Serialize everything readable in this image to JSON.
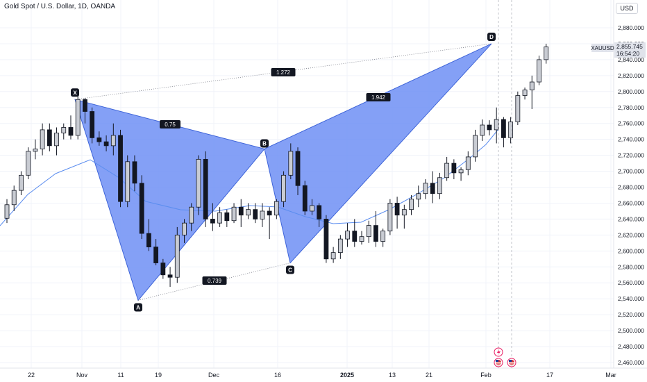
{
  "header": {
    "title": "Gold Spot / U.S. Dollar, 1D, OANDA",
    "currency_button": "USD"
  },
  "price_badge": {
    "symbol": "XAUUSD",
    "price": "2,855.745",
    "countdown": "16:54:20"
  },
  "colors": {
    "pattern_fill": "#6f8ff5",
    "pattern_stroke": "#3e64d8",
    "moving_average": "#5b8def",
    "candle_body_down": "#131722",
    "candle_body_up": "#c9ccd3"
  },
  "chart_data": {
    "type": "candlestick",
    "y_axis": {
      "range": [
        2450,
        2885
      ],
      "ticks": [
        "2,880.000",
        "2,860.000",
        "2,840.000",
        "2,820.000",
        "2,800.000",
        "2,780.000",
        "2,760.000",
        "2,740.000",
        "2,720.000",
        "2,700.000",
        "2,680.000",
        "2,660.000",
        "2,640.000",
        "2,620.000",
        "2,600.000",
        "2,580.000",
        "2,560.000",
        "2,540.000",
        "2,520.000",
        "2,500.000",
        "2,480.000",
        "2,460.000"
      ]
    },
    "x_axis": {
      "labels": [
        "22",
        "Nov",
        "11",
        "19",
        "Dec",
        "16",
        "2025",
        "13",
        "21",
        "Feb",
        "17",
        "Mar"
      ]
    },
    "candles": [
      [
        2641,
        2665,
        2635,
        2658
      ],
      [
        2658,
        2682,
        2650,
        2676
      ],
      [
        2676,
        2700,
        2670,
        2695
      ],
      [
        2695,
        2730,
        2690,
        2725
      ],
      [
        2725,
        2740,
        2715,
        2728
      ],
      [
        2728,
        2760,
        2720,
        2752
      ],
      [
        2752,
        2760,
        2725,
        2732
      ],
      [
        2732,
        2755,
        2720,
        2748
      ],
      [
        2748,
        2760,
        2740,
        2755
      ],
      [
        2755,
        2770,
        2740,
        2745
      ],
      [
        2745,
        2795,
        2740,
        2790
      ],
      [
        2790,
        2792,
        2760,
        2775
      ],
      [
        2775,
        2780,
        2735,
        2742
      ],
      [
        2742,
        2750,
        2732,
        2737
      ],
      [
        2737,
        2745,
        2725,
        2732
      ],
      [
        2732,
        2760,
        2720,
        2745
      ],
      [
        2745,
        2752,
        2655,
        2662
      ],
      [
        2662,
        2720,
        2655,
        2712
      ],
      [
        2712,
        2720,
        2675,
        2685
      ],
      [
        2685,
        2695,
        2615,
        2622
      ],
      [
        2622,
        2640,
        2600,
        2605
      ],
      [
        2605,
        2615,
        2582,
        2585
      ],
      [
        2585,
        2590,
        2565,
        2570
      ],
      [
        2570,
        2580,
        2555,
        2567
      ],
      [
        2567,
        2630,
        2560,
        2620
      ],
      [
        2620,
        2640,
        2610,
        2635
      ],
      [
        2635,
        2660,
        2625,
        2655
      ],
      [
        2655,
        2720,
        2645,
        2715
      ],
      [
        2715,
        2725,
        2630,
        2640
      ],
      [
        2640,
        2660,
        2625,
        2635
      ],
      [
        2635,
        2655,
        2630,
        2648
      ],
      [
        2648,
        2652,
        2630,
        2638
      ],
      [
        2638,
        2660,
        2635,
        2655
      ],
      [
        2655,
        2665,
        2630,
        2645
      ],
      [
        2645,
        2660,
        2640,
        2652
      ],
      [
        2652,
        2660,
        2635,
        2640
      ],
      [
        2640,
        2660,
        2630,
        2650
      ],
      [
        2650,
        2655,
        2615,
        2645
      ],
      [
        2645,
        2665,
        2640,
        2662
      ],
      [
        2662,
        2700,
        2655,
        2695
      ],
      [
        2695,
        2735,
        2690,
        2725
      ],
      [
        2725,
        2730,
        2670,
        2682
      ],
      [
        2682,
        2688,
        2645,
        2650
      ],
      [
        2650,
        2665,
        2645,
        2657
      ],
      [
        2657,
        2660,
        2630,
        2640
      ],
      [
        2640,
        2645,
        2585,
        2590
      ],
      [
        2590,
        2605,
        2585,
        2598
      ],
      [
        2598,
        2620,
        2590,
        2615
      ],
      [
        2615,
        2635,
        2605,
        2625
      ],
      [
        2625,
        2640,
        2605,
        2612
      ],
      [
        2612,
        2625,
        2608,
        2618
      ],
      [
        2618,
        2638,
        2610,
        2632
      ],
      [
        2632,
        2650,
        2605,
        2612
      ],
      [
        2612,
        2628,
        2605,
        2625
      ],
      [
        2625,
        2665,
        2620,
        2660
      ],
      [
        2660,
        2668,
        2628,
        2645
      ],
      [
        2645,
        2658,
        2628,
        2652
      ],
      [
        2652,
        2670,
        2645,
        2665
      ],
      [
        2665,
        2682,
        2655,
        2672
      ],
      [
        2672,
        2690,
        2665,
        2685
      ],
      [
        2685,
        2700,
        2660,
        2672
      ],
      [
        2672,
        2698,
        2665,
        2692
      ],
      [
        2692,
        2718,
        2688,
        2710
      ],
      [
        2710,
        2715,
        2690,
        2698
      ],
      [
        2698,
        2705,
        2688,
        2702
      ],
      [
        2702,
        2725,
        2695,
        2718
      ],
      [
        2718,
        2752,
        2712,
        2745
      ],
      [
        2745,
        2765,
        2738,
        2758
      ],
      [
        2758,
        2764,
        2745,
        2752
      ],
      [
        2752,
        2780,
        2735,
        2765
      ],
      [
        2765,
        2768,
        2730,
        2742
      ],
      [
        2742,
        2768,
        2735,
        2762
      ],
      [
        2762,
        2800,
        2758,
        2795
      ],
      [
        2795,
        2805,
        2790,
        2802
      ],
      [
        2802,
        2820,
        2778,
        2812
      ],
      [
        2812,
        2845,
        2808,
        2840
      ],
      [
        2840,
        2860,
        2835,
        2856
      ]
    ],
    "harmonic_pattern": {
      "points": [
        {
          "label": "X",
          "price": 2790
        },
        {
          "label": "A",
          "price": 2538
        },
        {
          "label": "B",
          "price": 2728
        },
        {
          "label": "C",
          "price": 2585
        },
        {
          "label": "D",
          "price": 2860
        }
      ],
      "ratios": [
        "0.75",
        "1.942",
        "0.739",
        "1.272"
      ]
    }
  }
}
